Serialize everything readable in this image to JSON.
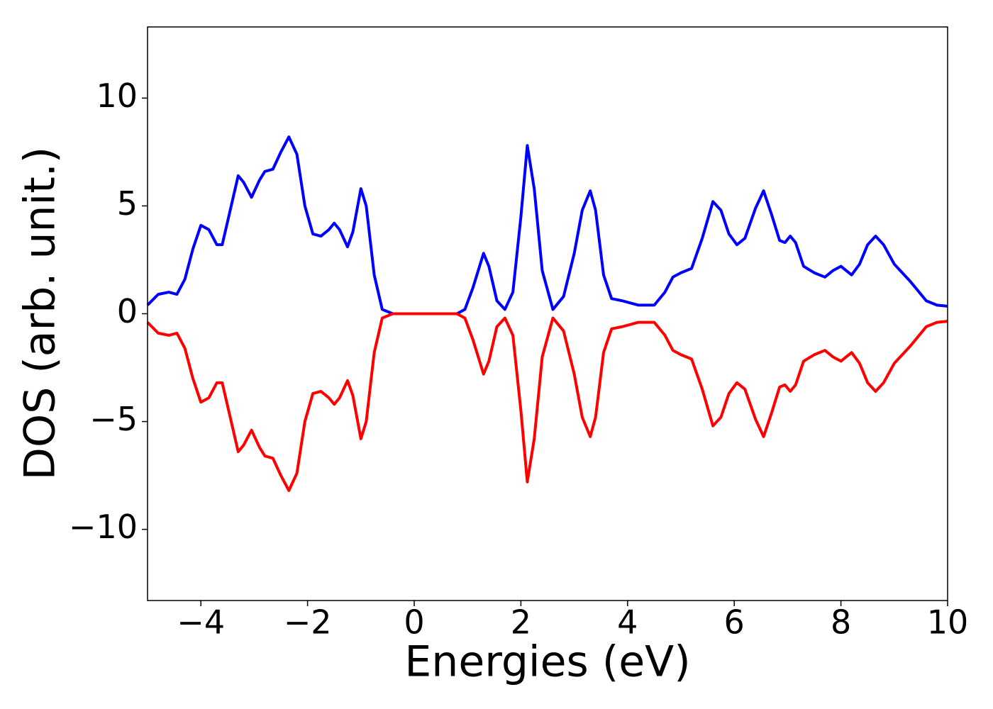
{
  "chart_data": {
    "type": "line",
    "x_label": "Energies (eV)",
    "y_label": "DOS (arb. unit.)",
    "x": [
      -5,
      -4.8,
      -4.6,
      -4.45,
      -4.3,
      -4.15,
      -4.0,
      -3.85,
      -3.7,
      -3.6,
      -3.45,
      -3.3,
      -3.2,
      -3.05,
      -2.9,
      -2.8,
      -2.65,
      -2.5,
      -2.35,
      -2.2,
      -2.05,
      -1.9,
      -1.75,
      -1.6,
      -1.5,
      -1.4,
      -1.25,
      -1.15,
      -1.0,
      -0.9,
      -0.75,
      -0.6,
      -0.4,
      0.0,
      0.8,
      0.95,
      1.1,
      1.3,
      1.4,
      1.55,
      1.7,
      1.85,
      2.0,
      2.12,
      2.25,
      2.4,
      2.6,
      2.8,
      3.0,
      3.15,
      3.3,
      3.4,
      3.55,
      3.7,
      3.9,
      4.2,
      4.5,
      4.7,
      4.85,
      5.0,
      5.2,
      5.4,
      5.6,
      5.75,
      5.9,
      6.05,
      6.2,
      6.4,
      6.55,
      6.7,
      6.85,
      6.95,
      7.05,
      7.15,
      7.3,
      7.5,
      7.7,
      7.85,
      8.0,
      8.1,
      8.2,
      8.35,
      8.5,
      8.65,
      8.8,
      9.0,
      9.3,
      9.6,
      9.8,
      10.0
    ],
    "series": [
      {
        "color": "#0000ff",
        "values": [
          0.4,
          0.9,
          1.0,
          0.9,
          1.6,
          3.0,
          4.1,
          3.9,
          3.2,
          3.2,
          4.8,
          6.4,
          6.1,
          5.4,
          6.2,
          6.6,
          6.7,
          7.5,
          8.2,
          7.4,
          5.0,
          3.7,
          3.6,
          3.9,
          4.2,
          3.9,
          3.1,
          3.8,
          5.8,
          5.0,
          1.8,
          0.2,
          0.0,
          0,
          0,
          0.2,
          1.2,
          2.8,
          2.2,
          0.6,
          0.2,
          1.0,
          4.5,
          7.8,
          5.8,
          2.0,
          0.2,
          0.8,
          2.8,
          4.8,
          5.7,
          4.8,
          1.8,
          0.7,
          0.6,
          0.4,
          0.4,
          1.0,
          1.7,
          1.9,
          2.1,
          3.5,
          5.2,
          4.8,
          3.7,
          3.2,
          3.5,
          4.9,
          5.7,
          4.6,
          3.4,
          3.3,
          3.6,
          3.3,
          2.2,
          1.9,
          1.7,
          2.0,
          2.2,
          2.0,
          1.8,
          2.3,
          3.2,
          3.6,
          3.2,
          2.3,
          1.5,
          0.6,
          0.4,
          0.35
        ]
      },
      {
        "color": "#ff0000",
        "values": [
          -0.4,
          -0.9,
          -1.0,
          -0.9,
          -1.6,
          -3.0,
          -4.1,
          -3.9,
          -3.2,
          -3.2,
          -4.8,
          -6.4,
          -6.1,
          -5.4,
          -6.2,
          -6.6,
          -6.7,
          -7.5,
          -8.2,
          -7.4,
          -5.0,
          -3.7,
          -3.6,
          -3.9,
          -4.2,
          -3.9,
          -3.1,
          -3.8,
          -5.8,
          -5.0,
          -1.8,
          -0.2,
          0.0,
          0,
          0,
          -0.2,
          -1.2,
          -2.8,
          -2.2,
          -0.6,
          -0.2,
          -1.0,
          -4.5,
          -7.8,
          -5.8,
          -2.0,
          -0.2,
          -0.8,
          -2.8,
          -4.8,
          -5.7,
          -4.8,
          -1.8,
          -0.7,
          -0.6,
          -0.4,
          -0.4,
          -1.0,
          -1.7,
          -1.9,
          -2.1,
          -3.5,
          -5.2,
          -4.8,
          -3.7,
          -3.2,
          -3.5,
          -4.9,
          -5.7,
          -4.6,
          -3.4,
          -3.3,
          -3.6,
          -3.3,
          -2.2,
          -1.9,
          -1.7,
          -2.0,
          -2.2,
          -2.0,
          -1.8,
          -2.3,
          -3.2,
          -3.6,
          -3.2,
          -2.3,
          -1.5,
          -0.6,
          -0.4,
          -0.35
        ]
      }
    ],
    "xlim": [
      -5,
      10
    ],
    "xticks": [
      {
        "value": -4,
        "label": "−4"
      },
      {
        "value": -2,
        "label": "−2"
      },
      0,
      2,
      4,
      6,
      8,
      10
    ],
    "ylim": [
      -13.3,
      13.3
    ],
    "yticks": [
      {
        "value": -10,
        "label": "−10"
      },
      {
        "value": -5,
        "label": "−5"
      },
      0,
      5,
      10
    ]
  }
}
